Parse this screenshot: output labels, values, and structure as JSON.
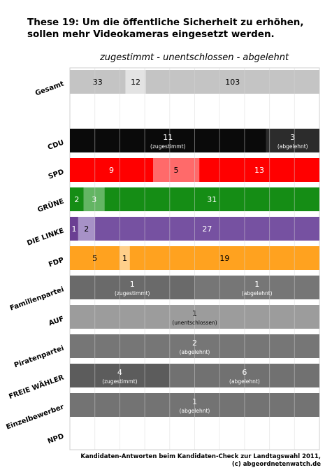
{
  "title": "These 19: Um die öffentliche Sicherheit zu erhöhen, sollen mehr Videokameras eingesetzt werden.",
  "subtitle": "zugestimmt - unentschlossen - abgelehnt",
  "footer": {
    "line1": "Kandidaten-Antworten beim Kandidaten-Check zur Landtagswahl 2011,",
    "line2": "(c) abgeordnetenwatch.de"
  },
  "chart_data": {
    "type": "bar",
    "orientation": "horizontal",
    "stacked": true,
    "normalized": true,
    "grid": true,
    "categories": [
      "Gesamt",
      "",
      "CDU",
      "SPD",
      "GRÜNE",
      "DIE LINKE",
      "FDP",
      "Familienpartei",
      "AUF",
      "Piratenpartei",
      "FREIE WÄHLER",
      "Einzelbewerber",
      "NPD"
    ],
    "series": [
      {
        "name": "zugestimmt",
        "values": [
          33,
          0,
          11,
          9,
          2,
          1,
          5,
          1,
          0,
          0,
          4,
          0,
          0
        ]
      },
      {
        "name": "unentschlossen",
        "values": [
          12,
          0,
          0,
          5,
          3,
          2,
          1,
          0,
          1,
          0,
          0,
          0,
          0
        ]
      },
      {
        "name": "abgelehnt",
        "values": [
          103,
          0,
          3,
          13,
          31,
          27,
          19,
          1,
          0,
          2,
          6,
          1,
          0
        ]
      }
    ],
    "segment_sublabels": {
      "zugestimmt": "(zugestimmt)",
      "unentschlossen": "(unentschlossen)",
      "abgelehnt": "(abgelehnt)"
    },
    "colors": {
      "Gesamt": [
        "#c4c4c4",
        "#e3e3e3",
        "#c4c4c4"
      ],
      "CDU": [
        "#0a0a0a",
        "#3a3a3a",
        "#2c2c2c"
      ],
      "SPD": [
        "#ff0000",
        "#ff6a6a",
        "#ff0000"
      ],
      "GRÜNE": [
        "#158d15",
        "#63b563",
        "#158d15"
      ],
      "DIE LINKE": [
        "#6a3f93",
        "#a792c7",
        "#7651a1"
      ],
      "FDP": [
        "#ffa21f",
        "#ffcf8a",
        "#ffa21f"
      ],
      "Familienpartei": [
        "#6a6a6a",
        "#8a8a8a",
        "#767676"
      ],
      "AUF": [
        "#9c9c9c",
        "#9c9c9c",
        "#9c9c9c"
      ],
      "Piratenpartei": [
        "#767676",
        "#767676",
        "#767676"
      ],
      "FREIE WÄHLER": [
        "#5c5c5c",
        "#8a8a8a",
        "#717171"
      ],
      "Einzelbewerber": [
        "#737373",
        "#737373",
        "#737373"
      ],
      "NPD": [
        "#ffffff",
        "#ffffff",
        "#ffffff"
      ]
    }
  }
}
